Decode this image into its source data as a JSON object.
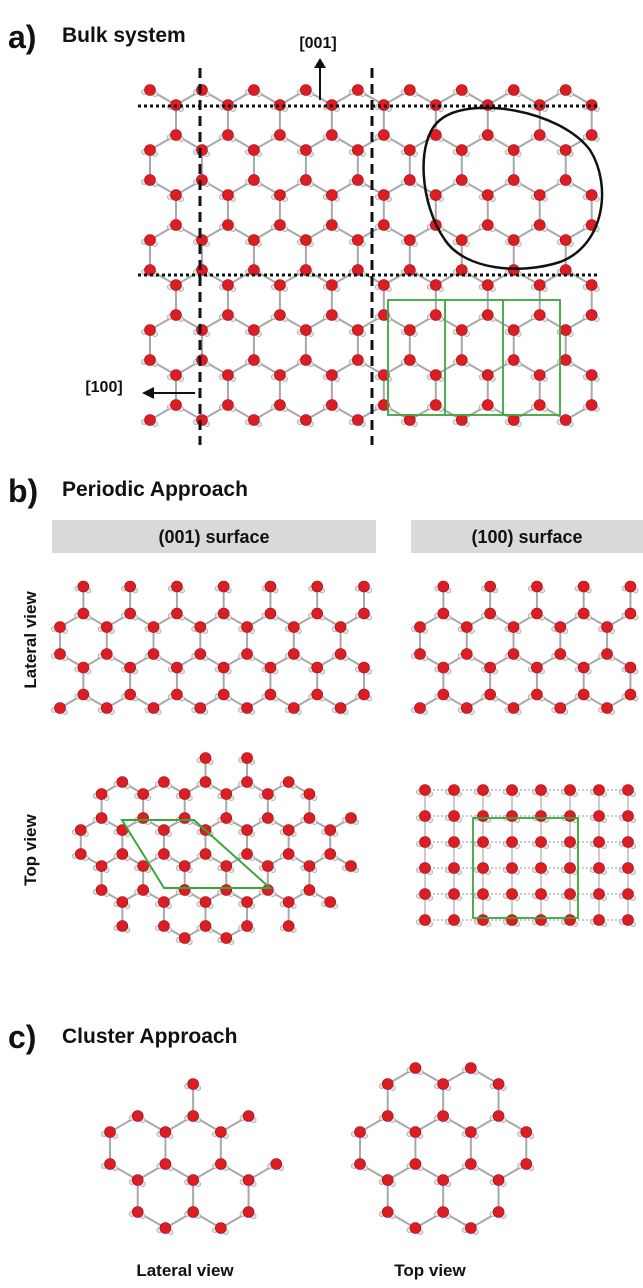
{
  "panels": [
    {
      "label": "a)",
      "title": "Bulk system",
      "axes": [
        "[001]",
        "[100]"
      ]
    },
    {
      "label": "b)",
      "title": "Periodic Approach",
      "columns": [
        "(001) surface",
        "(100) surface"
      ],
      "rows": [
        "Lateral view",
        "Top view"
      ]
    },
    {
      "label": "c)",
      "title": "Cluster Approach",
      "views": [
        "Lateral view",
        "Top view"
      ]
    }
  ]
}
